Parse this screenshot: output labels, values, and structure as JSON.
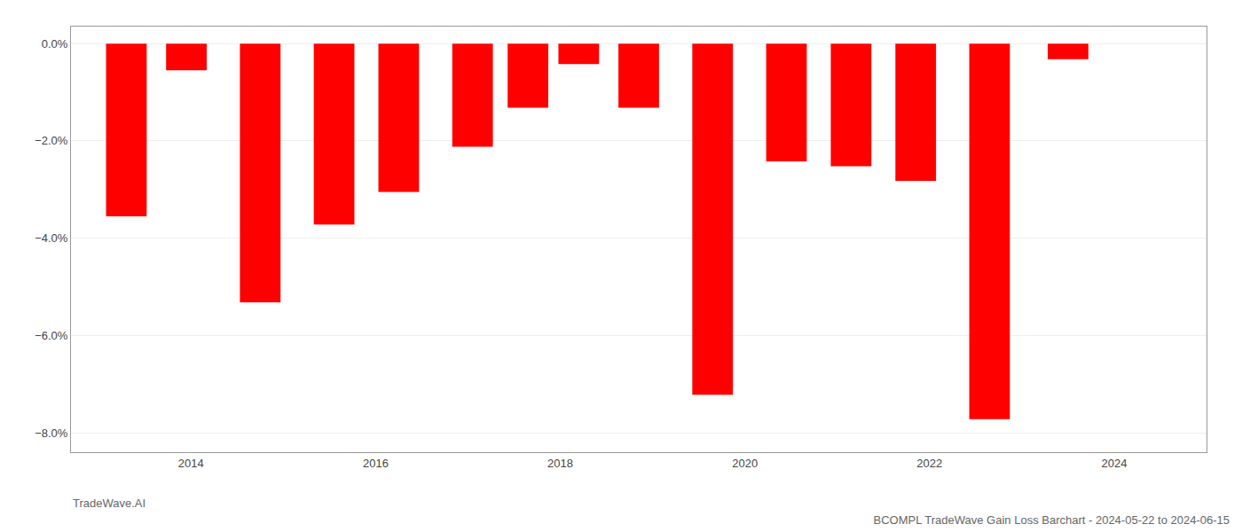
{
  "chart_data": {
    "type": "bar",
    "title": "BCOMPL TradeWave Gain Loss Barchart - 2024-05-22 to 2024-06-15",
    "annotations": [
      "TradeWave.AI"
    ],
    "x": [
      2013.3,
      2013.95,
      2014.75,
      2015.55,
      2016.25,
      2017.05,
      2017.65,
      2018.2,
      2018.85,
      2019.65,
      2020.45,
      2021.15,
      2021.85,
      2022.65,
      2023.5
    ],
    "values": [
      -3.55,
      -0.55,
      -5.32,
      -3.72,
      -3.05,
      -2.12,
      -1.32,
      -0.42,
      -1.32,
      -7.22,
      -2.42,
      -2.52,
      -2.82,
      -7.72,
      -0.32
    ],
    "color": "#ff0000",
    "xlim": [
      2012.7,
      2025.0
    ],
    "xticks": [
      2014,
      2016,
      2018,
      2020,
      2022,
      2024
    ],
    "ylim": [
      -8.4,
      0.35
    ],
    "yticks": [
      {
        "value": 0.0,
        "label": "0.0%"
      },
      {
        "value": -2.0,
        "label": "−2.0%"
      },
      {
        "value": -4.0,
        "label": "−4.0%"
      },
      {
        "value": -6.0,
        "label": "−6.0%"
      },
      {
        "value": -8.0,
        "label": "−8.0%"
      }
    ],
    "grid": true
  }
}
